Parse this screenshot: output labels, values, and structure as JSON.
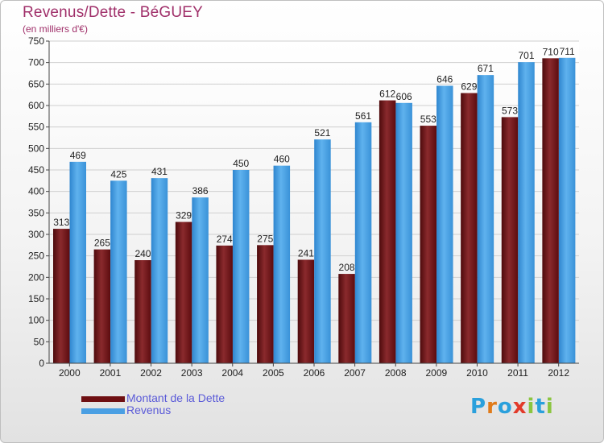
{
  "title": "Revenus/Dette - BéGUEY",
  "subtitle": "(en milliers d'€)",
  "chart_data": {
    "type": "bar",
    "categories": [
      "2000",
      "2001",
      "2002",
      "2003",
      "2004",
      "2005",
      "2006",
      "2007",
      "2008",
      "2009",
      "2010",
      "2011",
      "2012"
    ],
    "series": [
      {
        "name": "Montant de la Dette",
        "values": [
          313,
          265,
          240,
          329,
          274,
          275,
          241,
          208,
          612,
          553,
          629,
          573,
          710
        ],
        "color": "#6e0f12"
      },
      {
        "name": "Revenus",
        "values": [
          469,
          425,
          431,
          386,
          450,
          460,
          521,
          561,
          606,
          646,
          671,
          701,
          711
        ],
        "color": "#4a9fe3"
      }
    ],
    "ylim": [
      0,
      750
    ],
    "yticks": [
      0,
      50,
      100,
      150,
      200,
      250,
      300,
      350,
      400,
      450,
      500,
      550,
      600,
      650,
      700,
      750
    ],
    "grid": true,
    "legend": "bottom-left"
  },
  "legend": {
    "items": [
      {
        "label": "Montant de la Dette",
        "color": "#6e0f12"
      },
      {
        "label": "Revenus",
        "color": "#4a9fe3"
      }
    ]
  },
  "logo": {
    "letters": [
      "P",
      "r",
      "o",
      "x",
      "i",
      "t",
      "i"
    ],
    "colors": [
      "#2aa0dc",
      "#e07b1a",
      "#2aa0dc",
      "#e23a2a",
      "#8bc540",
      "#2aa0dc",
      "#8bc540"
    ]
  }
}
